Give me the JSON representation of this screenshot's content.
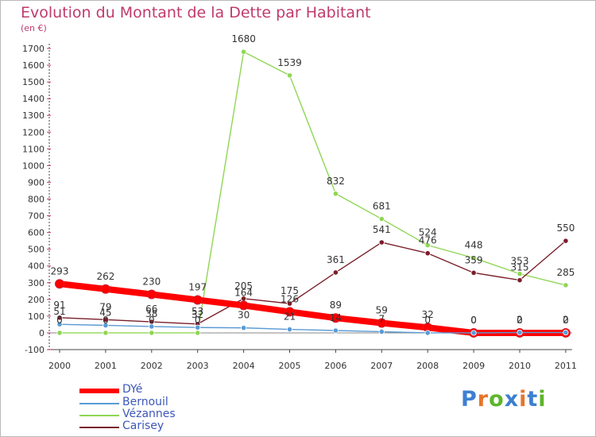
{
  "title": "Evolution du Montant de la Dette par Habitant",
  "unit": "(en €)",
  "chart_data": {
    "type": "line",
    "title": "Evolution du Montant de la Dette par Habitant",
    "ylabel": "(en €)",
    "x": [
      "2000",
      "2001",
      "2002",
      "2003",
      "2004",
      "2005",
      "2006",
      "2007",
      "2008",
      "2009",
      "2010",
      "2011"
    ],
    "ylim": [
      -100,
      1700
    ],
    "yticks": [
      -100,
      0,
      100,
      200,
      300,
      400,
      500,
      600,
      700,
      800,
      900,
      1000,
      1100,
      1200,
      1300,
      1400,
      1500,
      1600,
      1700
    ],
    "grid": false,
    "legend_position": "bottom-left",
    "series": [
      {
        "name": "DYé",
        "color": "#ff0000",
        "values": [
          293,
          262,
          230,
          197,
          164,
          126,
          89,
          59,
          32,
          0,
          0,
          0
        ],
        "point_labels": [
          "293",
          "262",
          "230",
          "197",
          "164",
          "126",
          "89",
          "59",
          "32",
          "0",
          "0",
          "0"
        ]
      },
      {
        "name": "Bernouil",
        "color": "#5a9bd5",
        "values": [
          51,
          45,
          38,
          32,
          30,
          21,
          14,
          7,
          0,
          0,
          2,
          2
        ],
        "point_labels": [
          "51",
          "45",
          "38",
          "32",
          "30",
          "21",
          "14",
          "7",
          "0",
          "0",
          "2",
          "2"
        ]
      },
      {
        "name": "Vézannes",
        "color": "#8fd654",
        "values": [
          0,
          0,
          0,
          0,
          1680,
          1539,
          832,
          681,
          524,
          448,
          353,
          285
        ],
        "point_labels": [
          "0",
          "0",
          "0",
          "0",
          "1680",
          "1539",
          "832",
          "681",
          "524",
          "448",
          "353",
          "285"
        ]
      },
      {
        "name": "Carisey",
        "color": "#7a1e2a",
        "values": [
          91,
          79,
          66,
          53,
          205,
          175,
          361,
          541,
          476,
          359,
          315,
          550
        ],
        "point_labels": [
          "91",
          "79",
          "66",
          "53",
          "205",
          "175",
          "361",
          "541",
          "476",
          "359",
          "315",
          "550"
        ]
      }
    ]
  },
  "legend": [
    {
      "label": "DYé",
      "color": "#ff0000"
    },
    {
      "label": "Bernouil",
      "color": "#5a9bd5"
    },
    {
      "label": "Vézannes",
      "color": "#8fd654"
    },
    {
      "label": "Carisey",
      "color": "#7a1e2a"
    }
  ],
  "logo": {
    "text": "Proxiti",
    "letter_colors": [
      "#3d7fd1",
      "#e8742a",
      "#5fb52a",
      "#3d7fd1",
      "#e8742a",
      "#3d7fd1",
      "#5fb52a"
    ]
  }
}
